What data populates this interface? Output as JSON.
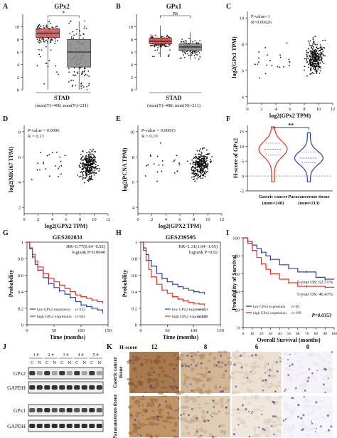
{
  "figure": {
    "panel_letters": [
      "A",
      "B",
      "C",
      "D",
      "E",
      "F",
      "G",
      "H",
      "I",
      "J",
      "K"
    ],
    "colors": {
      "tumor_red": "#e05555",
      "normal_grey": "#8c8c8c",
      "line_blue": "#2a3fae",
      "line_red": "#e0301e"
    }
  },
  "chart_data": [
    {
      "panel": "A",
      "type": "box",
      "title": "GPx2",
      "categories_label": "STAD",
      "counts_label": "(num(T)=408; num(N)=211)",
      "significance": "*",
      "ylim": [
        0,
        12
      ],
      "yticks": [
        "0",
        "2",
        "4",
        "6",
        "8",
        "10"
      ],
      "series": [
        {
          "name": "T",
          "color": "#e05555",
          "min": 0.0,
          "q1": 8.3,
          "median": 9.0,
          "q3": 9.7,
          "max": 11.2
        },
        {
          "name": "N",
          "color": "#8c8c8c",
          "min": 0.0,
          "q1": 3.6,
          "median": 6.0,
          "q3": 8.0,
          "max": 10.9
        }
      ]
    },
    {
      "panel": "B",
      "type": "box",
      "title": "GPx1",
      "categories_label": "STAD",
      "counts_label": "(num(T)=408; num(N)=211)",
      "significance": "ns",
      "ylim": [
        0,
        12
      ],
      "yticks": [
        "0",
        "2",
        "4",
        "6",
        "8",
        "10"
      ],
      "series": [
        {
          "name": "T",
          "color": "#e05555",
          "min": 5.2,
          "q1": 7.3,
          "median": 7.7,
          "q3": 8.2,
          "max": 10.2
        },
        {
          "name": "N",
          "color": "#8c8c8c",
          "min": 4.8,
          "q1": 6.2,
          "median": 6.8,
          "q3": 7.3,
          "max": 9.2
        }
      ]
    },
    {
      "panel": "C",
      "type": "scatter",
      "annotation": [
        "P-value=1",
        "R=0.00026"
      ],
      "xlabel": "log2(GPx2 TPM)",
      "ylabel": "log2(GPx1 TPM)",
      "xlim": [
        0,
        12
      ],
      "ylim": [
        3.5,
        10.5
      ],
      "xticks": [
        0,
        2,
        4,
        6,
        8,
        10,
        12
      ],
      "yticks": [
        4,
        6,
        8,
        10
      ]
    },
    {
      "panel": "D",
      "type": "scatter",
      "annotation": [
        "P-value = 0.0096",
        "R = 0.13"
      ],
      "xlabel": "log2(GPX2 TPM)",
      "ylabel": "log2(MKI67 TPM)",
      "xlim": [
        0,
        12
      ],
      "ylim": [
        1.5,
        8.5
      ],
      "xticks": [
        0,
        2,
        4,
        6,
        8,
        10,
        12
      ],
      "yticks": [
        2,
        4,
        6,
        8
      ]
    },
    {
      "panel": "E",
      "type": "scatter",
      "annotation": [
        "P-value = 0.00015",
        "R = 0.19"
      ],
      "xlabel": "log2(GPX2 TPM)",
      "ylabel": "log2(PCNA TPM)",
      "xlim": [
        0,
        12
      ],
      "ylim": [
        3.5,
        10.5
      ],
      "xticks": [
        0,
        2,
        4,
        6,
        8,
        10,
        12
      ],
      "yticks": [
        4,
        6,
        8,
        10
      ]
    },
    {
      "panel": "F",
      "type": "violin",
      "ylabel": "H-score of GPx2",
      "significance": "**",
      "ylim": [
        -5,
        17
      ],
      "yticks": [
        "-5",
        "0",
        "5",
        "10",
        "15"
      ],
      "categories": [
        "Gastric cancer",
        "Paracancerous tissue"
      ],
      "counts": [
        "(num=248)",
        "(num=213)"
      ],
      "series": [
        {
          "name": "Gastric cancer",
          "color": "#e0301e",
          "median": 9,
          "q1": 7,
          "q3": 11,
          "min": 0,
          "max": 15
        },
        {
          "name": "Paracancerous tissue",
          "color": "#2a3fae",
          "median": 6,
          "q1": 4.5,
          "q3": 8,
          "min": 0,
          "max": 13
        }
      ]
    },
    {
      "panel": "G",
      "type": "line",
      "title": "GES202831",
      "annotation": [
        "HR=0.77(0.64−0.92)",
        "logrank P=0.0048"
      ],
      "xlabel": "Time (months)",
      "ylabel": "Probability",
      "xlim": [
        0,
        150
      ],
      "ylim": [
        0,
        1
      ],
      "xticks": [
        0,
        50,
        100,
        150
      ],
      "yticks": [
        0,
        0.2,
        0.4,
        0.6,
        0.8,
        1
      ],
      "legend": [
        "low GPx2 expression",
        "high GPx2 expression"
      ],
      "legend_counts": [
        "n=232",
        "n=643"
      ],
      "series": [
        {
          "name": "low GPx2 expression",
          "color": "#2a3fae",
          "x": [
            0,
            5,
            10,
            15,
            20,
            30,
            40,
            50,
            60,
            70,
            80,
            90,
            100,
            110,
            120,
            130,
            140
          ],
          "y": [
            1,
            0.92,
            0.82,
            0.73,
            0.66,
            0.57,
            0.5,
            0.45,
            0.41,
            0.37,
            0.33,
            0.28,
            0.24,
            0.22,
            0.2,
            0.18,
            0.15
          ]
        },
        {
          "name": "high GPx2 expression",
          "color": "#e0301e",
          "x": [
            0,
            5,
            10,
            15,
            20,
            30,
            40,
            50,
            60,
            70,
            80,
            90,
            100,
            110,
            120,
            130,
            140
          ],
          "y": [
            1,
            0.93,
            0.85,
            0.77,
            0.7,
            0.62,
            0.56,
            0.52,
            0.48,
            0.44,
            0.4,
            0.36,
            0.34,
            0.32,
            0.3,
            0.28,
            0.27
          ]
        }
      ]
    },
    {
      "panel": "H",
      "type": "line",
      "title": "GES239595",
      "annotation": [
        "HR=1.31(1.04−1.65)",
        "logrank P=0.02"
      ],
      "xlabel": "Time (months)",
      "ylabel": "Probability",
      "xlim": [
        0,
        150
      ],
      "ylim": [
        0,
        1
      ],
      "xticks": [
        0,
        50,
        100,
        150
      ],
      "yticks": [
        0,
        0.2,
        0.4,
        0.6,
        0.8,
        1
      ],
      "legend": [
        "low GPx2 expression",
        "high GPx2 expression"
      ],
      "legend_counts": [
        "n=453",
        "n=178"
      ],
      "series": [
        {
          "name": "low GPx2 expression",
          "color": "#2a3fae",
          "x": [
            0,
            5,
            10,
            15,
            20,
            30,
            40,
            50,
            60,
            70,
            80,
            90,
            100,
            110,
            120
          ],
          "y": [
            1,
            0.93,
            0.85,
            0.78,
            0.71,
            0.62,
            0.56,
            0.52,
            0.49,
            0.46,
            0.44,
            0.42,
            0.4,
            0.39,
            0.38
          ]
        },
        {
          "name": "high GPx2 expression",
          "color": "#e0301e",
          "x": [
            0,
            5,
            10,
            15,
            20,
            30,
            40,
            50,
            60,
            70,
            80,
            90,
            100,
            110,
            120
          ],
          "y": [
            1,
            0.9,
            0.78,
            0.67,
            0.58,
            0.49,
            0.42,
            0.38,
            0.34,
            0.31,
            0.29,
            0.27,
            0.26,
            0.25,
            0.24
          ]
        }
      ]
    },
    {
      "panel": "I",
      "type": "line",
      "xlabel": "Overall Survival (months)",
      "ylabel": "Probability of Survival",
      "xlim": [
        0,
        100
      ],
      "ylim": [
        0,
        100
      ],
      "xticks": [
        0,
        10,
        20,
        30,
        40,
        50,
        60,
        70,
        80,
        90,
        100
      ],
      "yticks": [
        0,
        20,
        40,
        60,
        80,
        100
      ],
      "annotation": [
        "5-year OS: 62.31%",
        "5-year OS: 46.43%",
        "P=0.0353"
      ],
      "legend": [
        "low GPx2 expression",
        "high GPx2 expression"
      ],
      "legend_counts": [
        "n=49",
        "n=199"
      ],
      "series": [
        {
          "name": "low GPx2 expression",
          "color": "#2a3fae",
          "x": [
            0,
            5,
            10,
            15,
            20,
            25,
            30,
            40,
            50,
            60,
            70,
            80,
            90,
            100
          ],
          "y": [
            100,
            96,
            92,
            88,
            84,
            80,
            76,
            70,
            66,
            62,
            62,
            56,
            54,
            54
          ]
        },
        {
          "name": "high GPx2 expression",
          "color": "#e0301e",
          "x": [
            0,
            5,
            10,
            15,
            20,
            25,
            30,
            40,
            50,
            60,
            70,
            80,
            90,
            100
          ],
          "y": [
            100,
            94,
            86,
            78,
            71,
            65,
            60,
            54,
            50,
            46,
            46,
            46,
            45,
            45
          ]
        }
      ]
    }
  ],
  "western": {
    "title": "J",
    "lanes": [
      "1 #",
      "2 #",
      "3 #",
      "4 #",
      "5 #"
    ],
    "lane_sub": [
      "C",
      "N"
    ],
    "rows": [
      "GPx2",
      "GAPDH",
      "GPx1",
      "GAPDH"
    ]
  },
  "ihc": {
    "title": "K",
    "hscore_label": "H-score",
    "scores": [
      "12",
      "8",
      "6",
      "0"
    ],
    "rows": [
      "Gastric cancer tissue",
      "Paracancerous tissue"
    ]
  }
}
